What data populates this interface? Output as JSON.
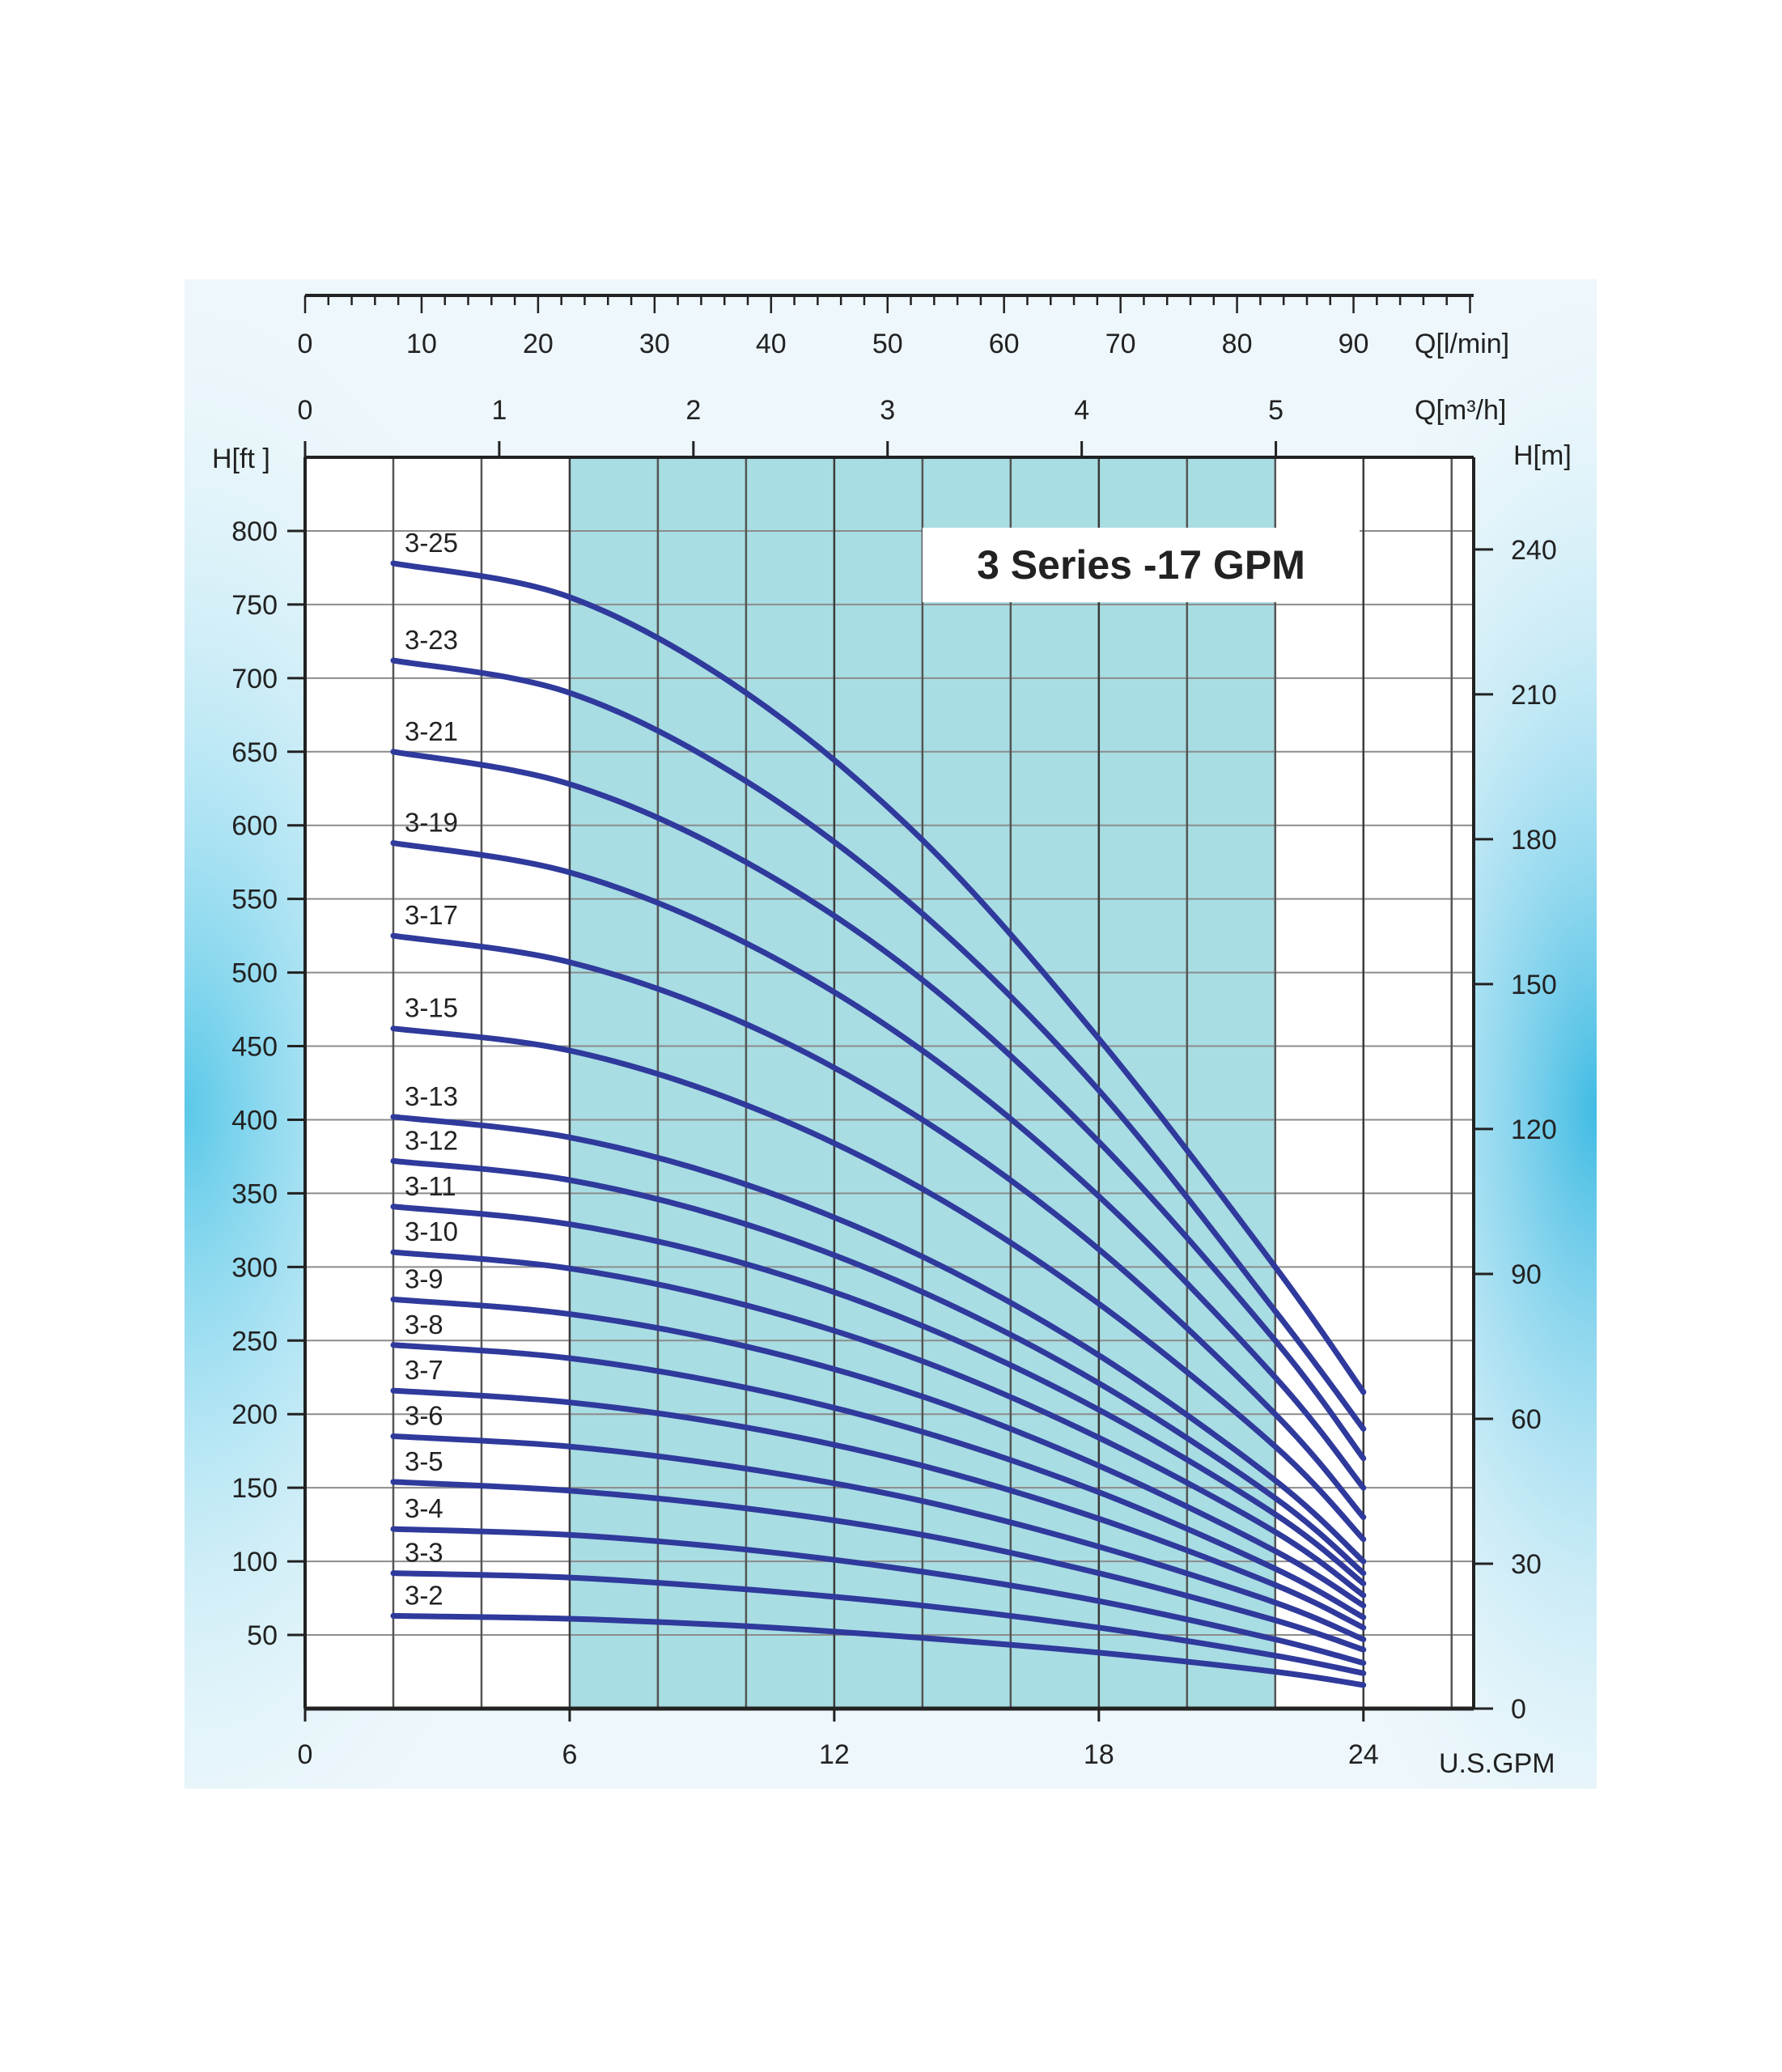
{
  "chart_data": {
    "type": "line",
    "title": "3 Series -17 GPM",
    "colors": {
      "curve": "#2f3a9c",
      "band": "#a8dde3",
      "grid_major": "#3a3a3a",
      "grid_minor": "#8c8c8c",
      "background_glow": "#49c3e6"
    },
    "axes": {
      "x_bottom": {
        "label": "U.S.GPM",
        "ticks": [
          "0",
          "6",
          "12",
          "18",
          "24"
        ],
        "range": [
          0,
          26.5
        ]
      },
      "x_top_lmin": {
        "label": "Q[l/min]",
        "ticks": [
          "0",
          "10",
          "20",
          "30",
          "40",
          "50",
          "60",
          "70",
          "80",
          "90"
        ]
      },
      "x_top_m3h": {
        "label": "Q[m³/h]",
        "ticks": [
          "0",
          "1",
          "2",
          "3",
          "4",
          "5"
        ]
      },
      "y_left": {
        "label": "H[ft ]",
        "ticks": [
          "50",
          "100",
          "150",
          "200",
          "250",
          "300",
          "350",
          "400",
          "450",
          "500",
          "550",
          "600",
          "650",
          "700",
          "750",
          "800"
        ],
        "range": [
          0,
          850
        ]
      },
      "y_right": {
        "label": "H[m]",
        "ticks": [
          "0",
          "30",
          "60",
          "90",
          "120",
          "150",
          "180",
          "210",
          "240"
        ]
      }
    },
    "highlight_band": [
      6,
      22
    ],
    "x": [
      2,
      6,
      10,
      14,
      18,
      22,
      24
    ],
    "series": [
      {
        "name": "3-25",
        "values": [
          778,
          755,
          690,
          590,
          455,
          300,
          215
        ]
      },
      {
        "name": "3-23",
        "values": [
          712,
          690,
          630,
          540,
          420,
          270,
          190
        ]
      },
      {
        "name": "3-21",
        "values": [
          650,
          628,
          575,
          495,
          385,
          250,
          170
        ]
      },
      {
        "name": "3-19",
        "values": [
          588,
          568,
          520,
          447,
          348,
          225,
          150
        ]
      },
      {
        "name": "3-17",
        "values": [
          525,
          507,
          465,
          400,
          312,
          200,
          130
        ]
      },
      {
        "name": "3-15",
        "values": [
          462,
          447,
          410,
          353,
          275,
          178,
          115
        ]
      },
      {
        "name": "3-13",
        "values": [
          402,
          388,
          356,
          307,
          240,
          155,
          100
        ]
      },
      {
        "name": "3-12",
        "values": [
          372,
          359,
          329,
          283,
          221,
          143,
          92
        ]
      },
      {
        "name": "3-11",
        "values": [
          341,
          329,
          302,
          260,
          203,
          132,
          85
        ]
      },
      {
        "name": "3-10",
        "values": [
          310,
          299,
          274,
          236,
          184,
          120,
          77
        ]
      },
      {
        "name": "3-9",
        "values": [
          278,
          268,
          246,
          212,
          165,
          107,
          70
        ]
      },
      {
        "name": "3-8",
        "values": [
          247,
          238,
          218,
          188,
          147,
          95,
          62
        ]
      },
      {
        "name": "3-7",
        "values": [
          216,
          208,
          191,
          165,
          129,
          84,
          55
        ]
      },
      {
        "name": "3-6",
        "values": [
          185,
          178,
          163,
          141,
          110,
          72,
          47
        ]
      },
      {
        "name": "3-5",
        "values": [
          154,
          148,
          136,
          118,
          92,
          60,
          40
        ]
      },
      {
        "name": "3-4",
        "values": [
          122,
          118,
          108,
          93,
          73,
          47,
          31
        ]
      },
      {
        "name": "3-3",
        "values": [
          92,
          89,
          81,
          70,
          55,
          36,
          24
        ]
      },
      {
        "name": "3-2",
        "values": [
          63,
          61,
          56,
          48,
          38,
          25,
          16
        ]
      }
    ]
  }
}
